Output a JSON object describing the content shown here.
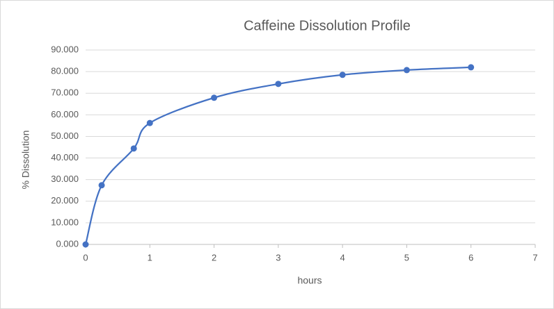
{
  "chart_data": {
    "type": "scatter",
    "title": "Caffeine Dissolution Profile",
    "x_label": "hours",
    "y_label": "% Dissolution",
    "x": [
      0,
      0.25,
      0.75,
      1,
      2,
      3,
      4,
      5,
      6
    ],
    "values": [
      0,
      27.4,
      44.4,
      56.2,
      67.9,
      74.3,
      78.5,
      80.7,
      82.0
    ],
    "color": "#4472c4",
    "smooth": true,
    "grid": true,
    "xlim": [
      0,
      7
    ],
    "xticks": [
      0,
      1,
      2,
      3,
      4,
      5,
      6,
      7
    ],
    "ylim": [
      0,
      90
    ],
    "yticks": [
      {
        "value": 0,
        "label": "0.000"
      },
      {
        "value": 10,
        "label": "10.000"
      },
      {
        "value": 20,
        "label": "20.000"
      },
      {
        "value": 30,
        "label": "30.000"
      },
      {
        "value": 40,
        "label": "40.000"
      },
      {
        "value": 50,
        "label": "50.000"
      },
      {
        "value": 60,
        "label": "60.000"
      },
      {
        "value": 70,
        "label": "70.000"
      },
      {
        "value": 80,
        "label": "80.000"
      },
      {
        "value": 90,
        "label": "90.000"
      }
    ]
  }
}
